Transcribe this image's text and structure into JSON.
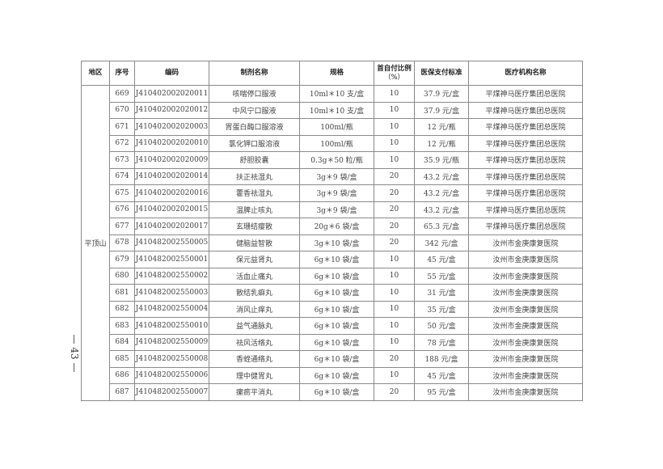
{
  "headers": [
    "地区",
    "序号",
    "编码",
    "制剂名称",
    "规格",
    "首自付比例（%）",
    "医保支付标准",
    "医疗机构名称"
  ],
  "header_ratio_line1": "首自付比例",
  "header_ratio_line2": "（%）",
  "region": "平顶山",
  "rows": [
    [
      "669",
      "J410402002020011",
      "咳喘停口服液",
      "10ml＊10 支/盒",
      "10",
      "37.9 元/盒",
      "平煤神马医疗集团总医院"
    ],
    [
      "670",
      "J410402002020012",
      "中风宁口服液",
      "10ml＊10 支/盒",
      "10",
      "37.9 元/盒",
      "平煤神马医疗集团总医院"
    ],
    [
      "671",
      "J410402002020003",
      "胃蛋白酶口服溶液",
      "100ml/瓶",
      "10",
      "12 元/瓶",
      "平煤神马医疗集团总医院"
    ],
    [
      "672",
      "J410402002020010",
      "氯化钾口服溶液",
      "100ml/瓶",
      "10",
      "12 元/瓶",
      "平煤神马医疗集团总医院"
    ],
    [
      "673",
      "J410402002020009",
      "舒胆胶囊",
      "0.3g＊50 粒/瓶",
      "10",
      "35.9 元/瓶",
      "平煤神马医疗集团总医院"
    ],
    [
      "674",
      "J410402002020014",
      "扶正祛湿丸",
      "3g＊9 袋/盒",
      "20",
      "43.2 元/盒",
      "平煤神马医疗集团总医院"
    ],
    [
      "675",
      "J410402002020016",
      "藿香祛湿丸",
      "3g＊9 袋/盒",
      "20",
      "43.2 元/盒",
      "平煤神马医疗集团总医院"
    ],
    [
      "676",
      "J410402002020015",
      "温脾止咳丸",
      "3g＊9 袋/盒",
      "20",
      "43.2 元/盒",
      "平煤神马医疗集团总医院"
    ],
    [
      "677",
      "J410402002020017",
      "玄珊结瘿散",
      "20g＊6 袋/盒",
      "20",
      "65.3 元/盒",
      "平煤神马医疗集团总医院"
    ],
    [
      "678",
      "J410482002550005",
      "健脑益智散",
      "3g＊10 袋/盒",
      "20",
      "342 元/盒",
      "汝州市金庚康复医院"
    ],
    [
      "679",
      "J410482002550001",
      "保元益肾丸",
      "6g＊10 袋/盒",
      "10",
      "45 元/盒",
      "汝州市金庚康复医院"
    ],
    [
      "680",
      "J410482002550002",
      "活血止痛丸",
      "6g＊10 袋/盒",
      "10",
      "55 元/盒",
      "汝州市金庚康复医院"
    ],
    [
      "681",
      "J410482002550003",
      "散结乳癖丸",
      "6g＊10 袋/盒",
      "10",
      "31 元/盒",
      "汝州市金庚康复医院"
    ],
    [
      "682",
      "J410482002550004",
      "消风止痒丸",
      "6g＊10 袋/盒",
      "10",
      "35 元/盒",
      "汝州市金庚康复医院"
    ],
    [
      "683",
      "J410482002550010",
      "益气通脉丸",
      "6g＊10 袋/盒",
      "10",
      "50 元/盒",
      "汝州市金庚康复医院"
    ],
    [
      "684",
      "J410482002550009",
      "祛风活络丸",
      "6g＊10 袋/盒",
      "10",
      "78 元/盒",
      "汝州市金庚康复医院"
    ],
    [
      "685",
      "J410482002550008",
      "香蛭通络丸",
      "6g＊10 袋/盒",
      "20",
      "188 元/盒",
      "汝州市金庚康复医院"
    ],
    [
      "686",
      "J410482002550006",
      "理中健胃丸",
      "6g＊10 袋/盒",
      "10",
      "45 元/盒",
      "汝州市金庚康复医院"
    ],
    [
      "687",
      "J410482002550007",
      "瘰疬平消丸",
      "6g＊10 袋/盒",
      "20",
      "95 元/盒",
      "汝州市金庚康复医院"
    ]
  ],
  "page_number": "— 43 —"
}
